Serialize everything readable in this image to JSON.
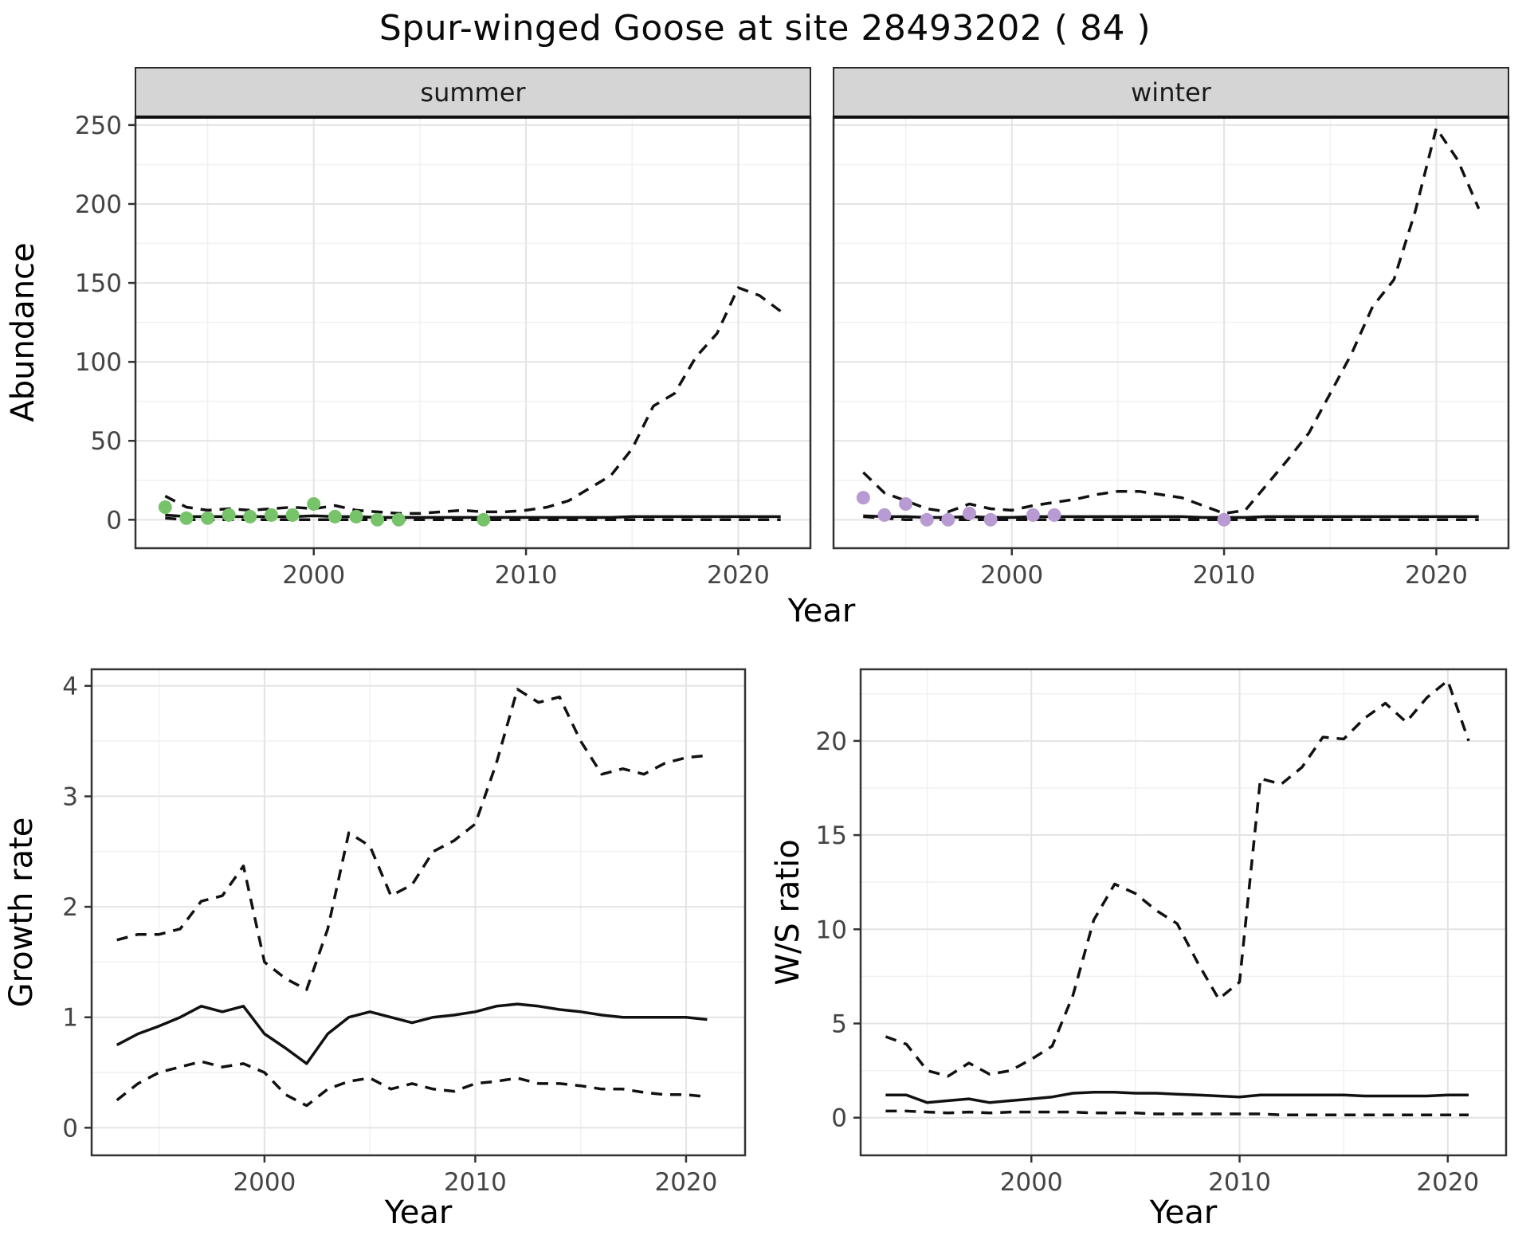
{
  "title": "Spur-winged Goose at site 28493202 ( 84 )",
  "colors": {
    "summer_points": "#77c36a",
    "winter_points": "#b79bd2",
    "line": "#111111",
    "strip_bg": "#d5d5d5",
    "grid_major": "#e4e4e4",
    "grid_minor": "#f1f1f1",
    "panel_border": "#333333"
  },
  "chart_data": [
    {
      "id": "abundance",
      "type": "line",
      "ylabel": "Abundance",
      "xlabel": "Year",
      "xlim": [
        1991.6,
        2023.4
      ],
      "ylim": [
        -18,
        255
      ],
      "xticks": [
        2000,
        2010,
        2020
      ],
      "yticks": [
        0,
        50,
        100,
        150,
        200,
        250
      ],
      "xminor": [
        1995,
        2005,
        2015
      ],
      "yminor": [
        25,
        75,
        125,
        175,
        225
      ],
      "legend": "none",
      "grid": true,
      "facets": [
        {
          "label": "summer",
          "point_color": "#77c36a",
          "points": {
            "x": [
              1993,
              1994,
              1995,
              1996,
              1997,
              1998,
              1999,
              2000,
              2001,
              2002,
              2003,
              2004,
              2008
            ],
            "y": [
              8,
              1,
              1,
              3,
              2,
              3,
              3,
              10,
              2,
              2,
              0,
              0,
              0
            ]
          },
          "series": [
            {
              "name": "upper_ci",
              "style": "dashed",
              "x": [
                1993,
                1994,
                1995,
                1996,
                1997,
                1998,
                1999,
                2000,
                2001,
                2002,
                2003,
                2004,
                2005,
                2006,
                2007,
                2008,
                2009,
                2010,
                2011,
                2012,
                2013,
                2014,
                2015,
                2016,
                2017,
                2018,
                2019,
                2020,
                2021,
                2022
              ],
              "y": [
                15,
                8,
                6,
                7,
                6,
                7,
                8,
                7,
                9,
                6,
                5,
                4,
                4,
                5,
                6,
                5,
                5,
                6,
                8,
                12,
                20,
                28,
                45,
                72,
                80,
                103,
                118,
                147,
                142,
                132
              ]
            },
            {
              "name": "median",
              "style": "solid",
              "x": [
                1993,
                1994,
                1995,
                1996,
                1997,
                1998,
                1999,
                2000,
                2001,
                2002,
                2003,
                2004,
                2005,
                2006,
                2007,
                2008,
                2009,
                2010,
                2011,
                2012,
                2013,
                2014,
                2015,
                2016,
                2017,
                2018,
                2019,
                2020,
                2021,
                2022
              ],
              "y": [
                3,
                2,
                2,
                2,
                2,
                2,
                2,
                2.5,
                2,
                2,
                1.5,
                1.5,
                1.5,
                1.5,
                1.5,
                1.5,
                1.5,
                1.5,
                1.5,
                1.5,
                1.5,
                1.5,
                2,
                2,
                2,
                2,
                2,
                2,
                2,
                2
              ]
            },
            {
              "name": "lower_ci",
              "style": "dashed",
              "x": [
                1993,
                1994,
                1995,
                1996,
                1997,
                1998,
                1999,
                2000,
                2001,
                2002,
                2003,
                2004,
                2005,
                2006,
                2007,
                2008,
                2009,
                2010,
                2011,
                2012,
                2013,
                2014,
                2015,
                2016,
                2017,
                2018,
                2019,
                2020,
                2021,
                2022
              ],
              "y": [
                1,
                0,
                0,
                0,
                0,
                0,
                0,
                0,
                0,
                0,
                0,
                0,
                0,
                0,
                0,
                0,
                0,
                0,
                0,
                0,
                0,
                0,
                0,
                0,
                0,
                0,
                0,
                0,
                0,
                0
              ]
            }
          ]
        },
        {
          "label": "winter",
          "point_color": "#b79bd2",
          "points": {
            "x": [
              1993,
              1994,
              1995,
              1996,
              1997,
              1998,
              1999,
              2001,
              2002,
              2010
            ],
            "y": [
              14,
              3,
              10,
              0,
              0,
              4,
              0,
              3,
              3,
              0
            ]
          },
          "series": [
            {
              "name": "upper_ci",
              "style": "dashed",
              "x": [
                1993,
                1994,
                1995,
                1996,
                1997,
                1998,
                1999,
                2000,
                2001,
                2002,
                2003,
                2004,
                2005,
                2006,
                2007,
                2008,
                2009,
                2010,
                2011,
                2012,
                2013,
                2014,
                2015,
                2016,
                2017,
                2018,
                2019,
                2020,
                2021,
                2022
              ],
              "y": [
                30,
                17,
                12,
                7,
                5,
                10,
                7,
                6,
                9,
                11,
                13,
                16,
                18,
                18,
                16,
                14,
                9,
                4,
                6,
                22,
                38,
                55,
                80,
                105,
                135,
                152,
                195,
                248,
                228,
                197
              ]
            },
            {
              "name": "median",
              "style": "solid",
              "x": [
                1993,
                1994,
                1995,
                1996,
                1997,
                1998,
                1999,
                2000,
                2001,
                2002,
                2003,
                2004,
                2005,
                2006,
                2007,
                2008,
                2009,
                2010,
                2011,
                2012,
                2013,
                2014,
                2015,
                2016,
                2017,
                2018,
                2019,
                2020,
                2021,
                2022
              ],
              "y": [
                2.5,
                2,
                2,
                1.5,
                1.5,
                2,
                1.5,
                1.5,
                2,
                2,
                2,
                2,
                2,
                2,
                2,
                2,
                1.5,
                1.5,
                1.5,
                2,
                2,
                2,
                2,
                2,
                2,
                2,
                2,
                2,
                2,
                2
              ]
            },
            {
              "name": "lower_ci",
              "style": "dashed",
              "x": [
                1993,
                1994,
                1995,
                1996,
                1997,
                1998,
                1999,
                2000,
                2001,
                2002,
                2003,
                2004,
                2005,
                2006,
                2007,
                2008,
                2009,
                2010,
                2011,
                2012,
                2013,
                2014,
                2015,
                2016,
                2017,
                2018,
                2019,
                2020,
                2021,
                2022
              ],
              "y": [
                2,
                1,
                0,
                0,
                0,
                0,
                0,
                0,
                0,
                0,
                0,
                0,
                0,
                0,
                0,
                0,
                0,
                0,
                0,
                0,
                0,
                0,
                0,
                0,
                0,
                0,
                0,
                0,
                0,
                0
              ]
            }
          ]
        }
      ]
    },
    {
      "id": "growth_rate",
      "type": "line",
      "ylabel": "Growth rate",
      "xlabel": "Year",
      "xlim": [
        1991.8,
        2022.8
      ],
      "ylim": [
        -0.25,
        4.15
      ],
      "xticks": [
        2000,
        2010,
        2020
      ],
      "yticks": [
        0,
        1,
        2,
        3,
        4
      ],
      "xminor": [
        1995,
        2005,
        2015
      ],
      "yminor": [
        0.5,
        1.5,
        2.5,
        3.5
      ],
      "legend": "none",
      "grid": true,
      "series": [
        {
          "name": "upper_ci",
          "style": "dashed",
          "x": [
            1993,
            1994,
            1995,
            1996,
            1997,
            1998,
            1999,
            2000,
            2001,
            2002,
            2003,
            2004,
            2005,
            2006,
            2007,
            2008,
            2009,
            2010,
            2011,
            2012,
            2013,
            2014,
            2015,
            2016,
            2017,
            2018,
            2019,
            2020,
            2021
          ],
          "y": [
            1.7,
            1.75,
            1.75,
            1.8,
            2.05,
            2.1,
            2.37,
            1.5,
            1.35,
            1.25,
            1.8,
            2.67,
            2.55,
            2.1,
            2.2,
            2.5,
            2.6,
            2.75,
            3.3,
            3.97,
            3.85,
            3.9,
            3.5,
            3.2,
            3.25,
            3.2,
            3.3,
            3.35,
            3.37
          ]
        },
        {
          "name": "median",
          "style": "solid",
          "x": [
            1993,
            1994,
            1995,
            1996,
            1997,
            1998,
            1999,
            2000,
            2001,
            2002,
            2003,
            2004,
            2005,
            2006,
            2007,
            2008,
            2009,
            2010,
            2011,
            2012,
            2013,
            2014,
            2015,
            2016,
            2017,
            2018,
            2019,
            2020,
            2021
          ],
          "y": [
            0.75,
            0.85,
            0.92,
            1.0,
            1.1,
            1.05,
            1.1,
            0.85,
            0.72,
            0.58,
            0.85,
            1.0,
            1.05,
            1.0,
            0.95,
            1.0,
            1.02,
            1.05,
            1.1,
            1.12,
            1.1,
            1.07,
            1.05,
            1.02,
            1.0,
            1.0,
            1.0,
            1.0,
            0.98
          ]
        },
        {
          "name": "lower_ci",
          "style": "dashed",
          "x": [
            1993,
            1994,
            1995,
            1996,
            1997,
            1998,
            1999,
            2000,
            2001,
            2002,
            2003,
            2004,
            2005,
            2006,
            2007,
            2008,
            2009,
            2010,
            2011,
            2012,
            2013,
            2014,
            2015,
            2016,
            2017,
            2018,
            2019,
            2020,
            2021
          ],
          "y": [
            0.25,
            0.4,
            0.5,
            0.55,
            0.6,
            0.55,
            0.58,
            0.5,
            0.3,
            0.2,
            0.35,
            0.42,
            0.45,
            0.35,
            0.4,
            0.35,
            0.33,
            0.4,
            0.42,
            0.45,
            0.4,
            0.4,
            0.38,
            0.35,
            0.35,
            0.32,
            0.3,
            0.3,
            0.28
          ]
        }
      ]
    },
    {
      "id": "ws_ratio",
      "type": "line",
      "ylabel": "W/S ratio",
      "xlabel": "Year",
      "xlim": [
        1991.8,
        2022.8
      ],
      "ylim": [
        -2,
        23.8
      ],
      "xticks": [
        2000,
        2010,
        2020
      ],
      "yticks": [
        0,
        5,
        10,
        15,
        20
      ],
      "xminor": [
        1995,
        2005,
        2015
      ],
      "yminor": [
        2.5,
        7.5,
        12.5,
        17.5,
        22.5
      ],
      "legend": "none",
      "grid": true,
      "series": [
        {
          "name": "upper_ci",
          "style": "dashed",
          "x": [
            1993,
            1994,
            1995,
            1996,
            1997,
            1998,
            1999,
            2000,
            2001,
            2002,
            2003,
            2004,
            2005,
            2006,
            2007,
            2008,
            2009,
            2010,
            2011,
            2012,
            2013,
            2014,
            2015,
            2016,
            2017,
            2018,
            2019,
            2020,
            2021
          ],
          "y": [
            4.3,
            3.9,
            2.5,
            2.2,
            2.9,
            2.3,
            2.5,
            3.1,
            3.8,
            6.5,
            10.5,
            12.4,
            11.9,
            11.0,
            10.3,
            8.2,
            6.3,
            7.2,
            18.0,
            17.7,
            18.6,
            20.2,
            20.1,
            21.2,
            22.0,
            21.0,
            22.3,
            23.2,
            20.0
          ]
        },
        {
          "name": "median",
          "style": "solid",
          "x": [
            1993,
            1994,
            1995,
            1996,
            1997,
            1998,
            1999,
            2000,
            2001,
            2002,
            2003,
            2004,
            2005,
            2006,
            2007,
            2008,
            2009,
            2010,
            2011,
            2012,
            2013,
            2014,
            2015,
            2016,
            2017,
            2018,
            2019,
            2020,
            2021
          ],
          "y": [
            1.2,
            1.2,
            0.8,
            0.9,
            1.0,
            0.8,
            0.9,
            1.0,
            1.1,
            1.3,
            1.35,
            1.35,
            1.3,
            1.3,
            1.25,
            1.2,
            1.15,
            1.1,
            1.2,
            1.2,
            1.2,
            1.2,
            1.2,
            1.15,
            1.15,
            1.15,
            1.15,
            1.2,
            1.2
          ]
        },
        {
          "name": "lower_ci",
          "style": "dashed",
          "x": [
            1993,
            1994,
            1995,
            1996,
            1997,
            1998,
            1999,
            2000,
            2001,
            2002,
            2003,
            2004,
            2005,
            2006,
            2007,
            2008,
            2009,
            2010,
            2011,
            2012,
            2013,
            2014,
            2015,
            2016,
            2017,
            2018,
            2019,
            2020,
            2021
          ],
          "y": [
            0.35,
            0.35,
            0.3,
            0.25,
            0.3,
            0.25,
            0.3,
            0.3,
            0.3,
            0.3,
            0.25,
            0.25,
            0.25,
            0.2,
            0.2,
            0.2,
            0.2,
            0.2,
            0.2,
            0.15,
            0.15,
            0.15,
            0.15,
            0.15,
            0.15,
            0.15,
            0.15,
            0.15,
            0.15
          ]
        }
      ]
    }
  ]
}
